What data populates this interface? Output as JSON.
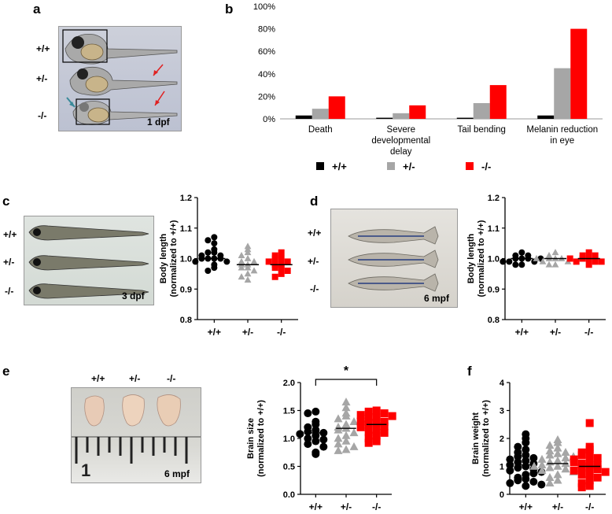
{
  "panel_letters": {
    "a": "a",
    "b": "b",
    "c": "c",
    "d": "d",
    "e": "e",
    "f": "f"
  },
  "panel_a": {
    "genotypes": [
      "+/+",
      "+/-",
      "-/-"
    ],
    "stage": "1 dpf"
  },
  "panel_c_photo": {
    "genotypes": [
      "+/+",
      "+/-",
      "-/-"
    ],
    "stage": "3 dpf"
  },
  "panel_d_photo": {
    "genotypes": [
      "+/+",
      "+/-",
      "-/-"
    ],
    "stage": "6 mpf"
  },
  "panel_e_photo": {
    "genotypes": [
      "+/+",
      "+/-",
      "-/-"
    ],
    "stage": "6 mpf",
    "ruler_text": "1"
  },
  "colors": {
    "wt": "#000000",
    "het": "#a6a6a6",
    "ko": "#ff0000"
  },
  "chart_data": [
    {
      "id": "b",
      "type": "bar",
      "categories": [
        "Death",
        "Severe developmental delay",
        "Tail bending",
        "Melanin reduction in eye"
      ],
      "category_lines": [
        [
          "Death"
        ],
        [
          "Severe",
          "developmental",
          "delay"
        ],
        [
          "Tail bending"
        ],
        [
          "Melanin reduction",
          "in eye"
        ]
      ],
      "series": [
        {
          "name": "+/+",
          "color": "#000000",
          "values": [
            3,
            1,
            1,
            3
          ]
        },
        {
          "name": "+/-",
          "color": "#a6a6a6",
          "values": [
            9,
            5,
            14,
            45
          ]
        },
        {
          "name": "-/-",
          "color": "#ff0000",
          "values": [
            20,
            12,
            30,
            80
          ]
        }
      ],
      "ylim": [
        0,
        100
      ],
      "yticks": [
        "0%",
        "20%",
        "40%",
        "60%",
        "80%",
        "100%"
      ],
      "legend_position": "bottom"
    },
    {
      "id": "c",
      "type": "scatter",
      "ylabel": [
        "Body length",
        "(normalized to +/+)"
      ],
      "categories": [
        "+/+",
        "+/-",
        "-/-"
      ],
      "ylim": [
        0.8,
        1.2
      ],
      "yticks": [
        "0.8",
        "0.9",
        "1.0",
        "1.1",
        "1.2"
      ],
      "series": [
        {
          "name": "+/+",
          "marker": "circle",
          "color": "#000000",
          "mean": 1.0,
          "values": [
            1.07,
            1.06,
            1.05,
            1.03,
            1.02,
            1.02,
            1.01,
            1.01,
            1.0,
            1.0,
            1.0,
            1.0,
            0.99,
            0.99,
            0.98,
            0.97,
            0.96
          ]
        },
        {
          "name": "+/-",
          "marker": "triangle",
          "color": "#a6a6a6",
          "mean": 0.98,
          "values": [
            1.04,
            1.03,
            1.02,
            1.01,
            1.0,
            0.99,
            0.99,
            0.98,
            0.98,
            0.97,
            0.97,
            0.96,
            0.95,
            0.94,
            0.93
          ]
        },
        {
          "name": "-/-",
          "marker": "square",
          "color": "#ff0000",
          "mean": 0.98,
          "values": [
            1.02,
            1.01,
            1.0,
            1.0,
            0.99,
            0.99,
            0.98,
            0.98,
            0.97,
            0.97,
            0.96,
            0.95,
            0.94
          ]
        }
      ]
    },
    {
      "id": "d",
      "type": "scatter",
      "ylabel": [
        "Body length",
        "(normalized to +/+)"
      ],
      "categories": [
        "+/+",
        "+/-",
        "-/-"
      ],
      "ylim": [
        0.8,
        1.2
      ],
      "yticks": [
        "0.8",
        "0.9",
        "1.0",
        "1.1",
        "1.2"
      ],
      "series": [
        {
          "name": "+/+",
          "marker": "circle",
          "color": "#000000",
          "mean": 1.0,
          "values": [
            1.02,
            1.01,
            1.01,
            1.0,
            1.0,
            1.0,
            0.99,
            0.99,
            0.99,
            0.98,
            0.98,
            1.0
          ]
        },
        {
          "name": "+/-",
          "marker": "triangle",
          "color": "#a6a6a6",
          "mean": 1.0,
          "values": [
            1.02,
            1.01,
            1.0,
            1.0,
            1.0,
            0.99,
            0.99,
            0.98,
            0.98,
            1.0
          ]
        },
        {
          "name": "-/-",
          "marker": "square",
          "color": "#ff0000",
          "mean": 1.0,
          "values": [
            1.02,
            1.01,
            1.01,
            1.0,
            1.0,
            0.99,
            0.99,
            0.99,
            0.98,
            1.0
          ]
        }
      ]
    },
    {
      "id": "e",
      "type": "scatter",
      "ylabel": [
        "Brain size",
        "(normalized to +/+)"
      ],
      "categories": [
        "+/+",
        "+/-",
        "-/-"
      ],
      "ylim": [
        0.0,
        2.0
      ],
      "yticks": [
        "0.0",
        "0.5",
        "1.0",
        "1.5",
        "2.0"
      ],
      "significance": {
        "from": 0,
        "to": 2,
        "label": "*"
      },
      "series": [
        {
          "name": "+/+",
          "marker": "circle",
          "color": "#000000",
          "mean": 1.1,
          "values": [
            1.48,
            1.45,
            1.3,
            1.25,
            1.2,
            1.15,
            1.12,
            1.1,
            1.08,
            1.05,
            1.0,
            0.98,
            0.95,
            0.9,
            0.85,
            0.75,
            0.72
          ]
        },
        {
          "name": "+/-",
          "marker": "triangle",
          "color": "#a6a6a6",
          "mean": 1.18,
          "values": [
            1.65,
            1.55,
            1.45,
            1.4,
            1.35,
            1.3,
            1.25,
            1.2,
            1.18,
            1.15,
            1.1,
            1.05,
            1.0,
            0.95,
            0.9,
            0.85,
            0.8,
            0.78
          ]
        },
        {
          "name": "-/-",
          "marker": "square",
          "color": "#ff0000",
          "mean": 1.25,
          "values": [
            1.5,
            1.48,
            1.45,
            1.42,
            1.38,
            1.35,
            1.3,
            1.28,
            1.25,
            1.22,
            1.2,
            1.15,
            1.12,
            1.1,
            1.05,
            1.0,
            0.95,
            0.92,
            1.3,
            1.4
          ]
        }
      ]
    },
    {
      "id": "f",
      "type": "scatter",
      "ylabel": [
        "Brain weight",
        "(normalized to +/+)"
      ],
      "categories": [
        "+/+",
        "+/-",
        "-/-"
      ],
      "ylim": [
        0,
        4
      ],
      "yticks": [
        "0",
        "1",
        "2",
        "3",
        "4"
      ],
      "series": [
        {
          "name": "+/+",
          "marker": "circle",
          "color": "#000000",
          "mean": 1.05,
          "values": [
            2.15,
            2.0,
            1.85,
            1.7,
            1.6,
            1.5,
            1.4,
            1.35,
            1.3,
            1.2,
            1.15,
            1.1,
            1.05,
            1.0,
            0.95,
            0.9,
            0.85,
            0.8,
            0.7,
            0.6,
            0.55,
            0.5,
            0.45,
            0.4,
            0.35,
            0.3,
            1.25,
            0.75
          ]
        },
        {
          "name": "+/-",
          "marker": "triangle",
          "color": "#a6a6a6",
          "mean": 1.1,
          "values": [
            1.95,
            1.85,
            1.75,
            1.65,
            1.55,
            1.5,
            1.45,
            1.4,
            1.3,
            1.25,
            1.2,
            1.15,
            1.1,
            1.05,
            1.0,
            0.95,
            0.9,
            0.85,
            0.8,
            0.7,
            0.6,
            0.5,
            0.4,
            1.35,
            1.0
          ]
        },
        {
          "name": "-/-",
          "marker": "square",
          "color": "#ff0000",
          "mean": 1.0,
          "values": [
            2.55,
            1.7,
            1.6,
            1.5,
            1.45,
            1.4,
            1.3,
            1.25,
            1.2,
            1.1,
            1.05,
            1.0,
            0.95,
            0.9,
            0.85,
            0.8,
            0.75,
            0.7,
            0.6,
            0.5,
            0.4,
            0.3,
            0.25,
            1.15
          ]
        }
      ]
    }
  ]
}
